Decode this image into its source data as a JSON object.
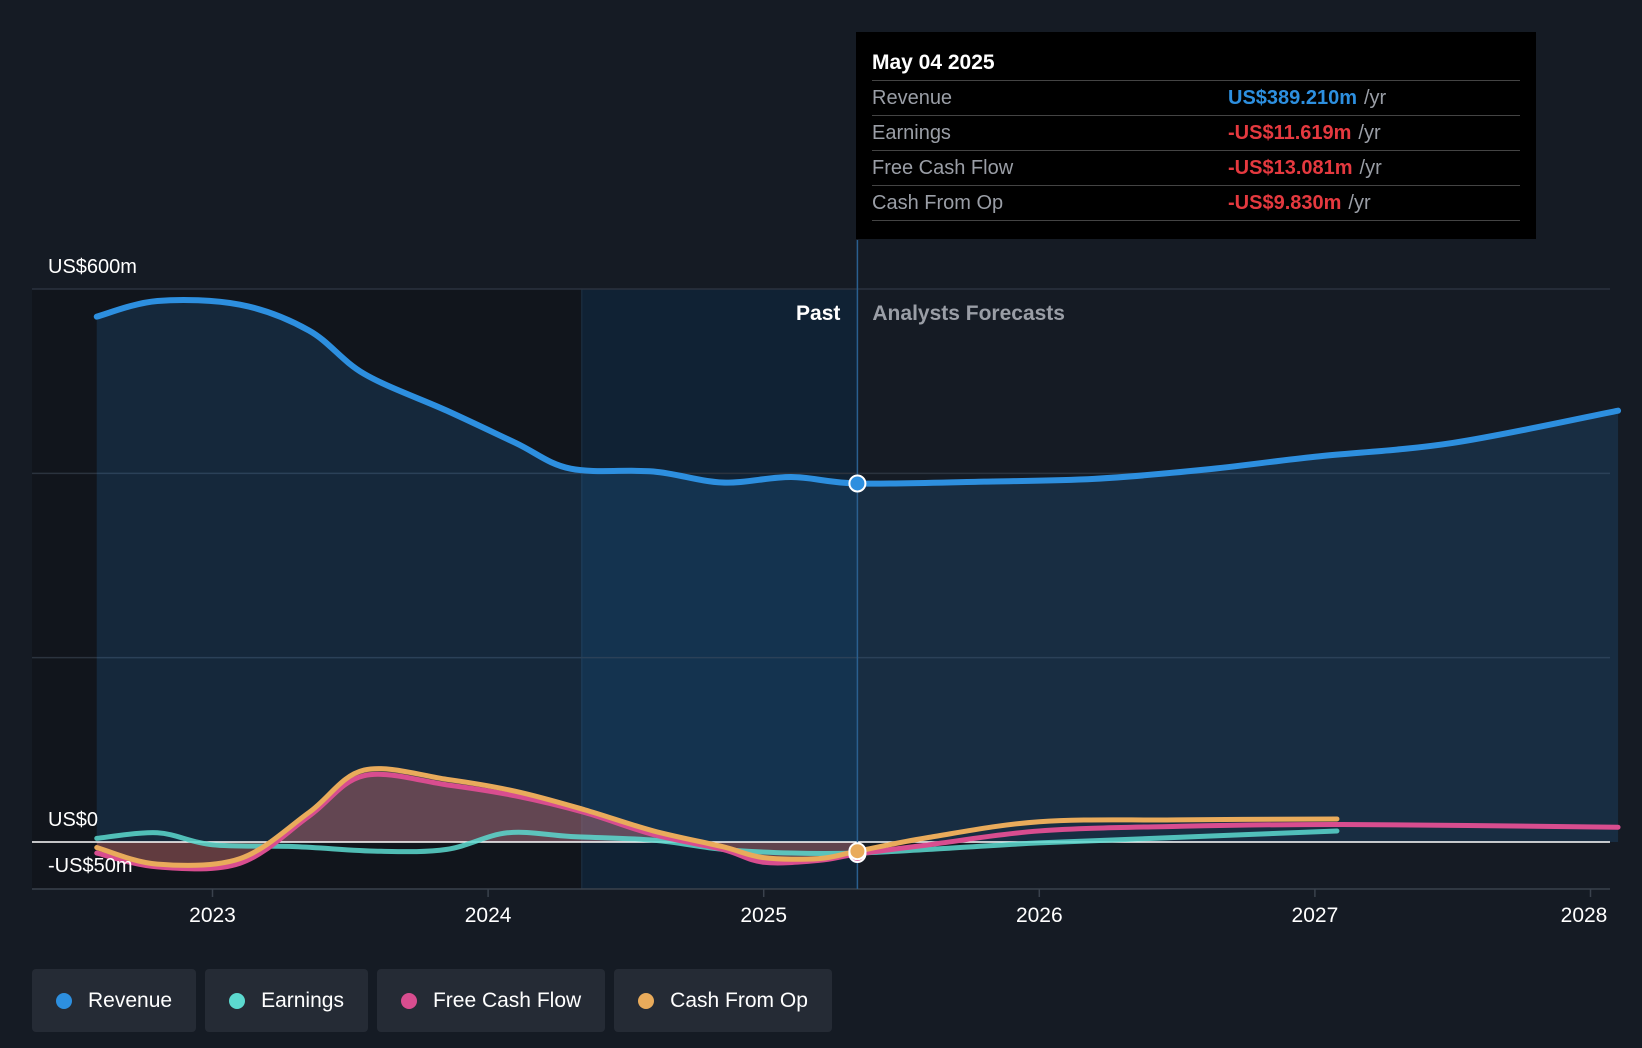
{
  "tooltip": {
    "date": "May 04 2025",
    "rows": [
      {
        "label": "Revenue",
        "value": "US$389.210m",
        "unit": "/yr",
        "color": "#2d8fdf"
      },
      {
        "label": "Earnings",
        "value": "-US$11.619m",
        "unit": "/yr",
        "color": "#e5393f"
      },
      {
        "label": "Free Cash Flow",
        "value": "-US$13.081m",
        "unit": "/yr",
        "color": "#e5393f"
      },
      {
        "label": "Cash From Op",
        "value": "-US$9.830m",
        "unit": "/yr",
        "color": "#e5393f"
      }
    ]
  },
  "chart_data": {
    "type": "line",
    "y_tick_labels": [
      "US$600m",
      "US$0",
      "-US$50m"
    ],
    "x_tick_labels": [
      "2023",
      "2024",
      "2025",
      "2026",
      "2027",
      "2028"
    ],
    "past_label": "Past",
    "forecast_label": "Analysts Forecasts",
    "ylim": [
      -50,
      600
    ],
    "grid": true,
    "legend_position": "bottom-left",
    "series": [
      {
        "name": "Revenue",
        "color": "#2d8fdf",
        "x": [
          2022.58,
          2022.8,
          2023.1,
          2023.35,
          2023.55,
          2023.85,
          2024.1,
          2024.3,
          2024.6,
          2024.85,
          2025.1,
          2025.34,
          2025.8,
          2026.2,
          2026.6,
          2027.0,
          2027.5,
          2028.1
        ],
        "y": [
          570,
          587,
          583,
          555,
          508,
          468,
          433,
          405,
          402,
          390,
          396,
          389,
          391,
          394,
          404,
          418,
          433,
          468
        ]
      },
      {
        "name": "Earnings",
        "color": "#5cd9cf",
        "x": [
          2022.58,
          2022.8,
          2023.0,
          2023.3,
          2023.6,
          2023.85,
          2024.07,
          2024.3,
          2024.6,
          2024.85,
          2025.1,
          2025.34,
          2025.6,
          2026.0,
          2026.5,
          2027.08
        ],
        "y": [
          4,
          10,
          -3,
          -5,
          -10,
          -8,
          10,
          6,
          2,
          -8,
          -12,
          -12,
          -8,
          -1,
          5,
          12
        ]
      },
      {
        "name": "Free Cash Flow",
        "color": "#d84d8f",
        "x": [
          2022.58,
          2022.8,
          2023.1,
          2023.35,
          2023.55,
          2023.85,
          2024.1,
          2024.35,
          2024.6,
          2024.85,
          2025.0,
          2025.2,
          2025.34,
          2025.6,
          2026.0,
          2026.5,
          2027.1,
          2028.1
        ],
        "y": [
          -12,
          -27,
          -23,
          28,
          72,
          62,
          50,
          32,
          8,
          -8,
          -22,
          -20,
          -13,
          -3,
          12,
          17,
          19,
          16
        ]
      },
      {
        "name": "Cash From Op",
        "color": "#e9ab5b",
        "x": [
          2022.58,
          2022.8,
          2023.1,
          2023.35,
          2023.55,
          2023.85,
          2024.1,
          2024.35,
          2024.6,
          2024.85,
          2025.0,
          2025.2,
          2025.34,
          2025.6,
          2026.0,
          2026.5,
          2027.08
        ],
        "y": [
          -6,
          -24,
          -18,
          32,
          78,
          68,
          55,
          35,
          12,
          -5,
          -17,
          -18,
          -10,
          5,
          22,
          24,
          25
        ]
      }
    ],
    "highlight_x": 2025.34
  },
  "legend": [
    {
      "label": "Revenue",
      "color": "#2d8fdf"
    },
    {
      "label": "Earnings",
      "color": "#5cd9cf"
    },
    {
      "label": "Free Cash Flow",
      "color": "#d84d8f"
    },
    {
      "label": "Cash From Op",
      "color": "#e9ab5b"
    }
  ]
}
